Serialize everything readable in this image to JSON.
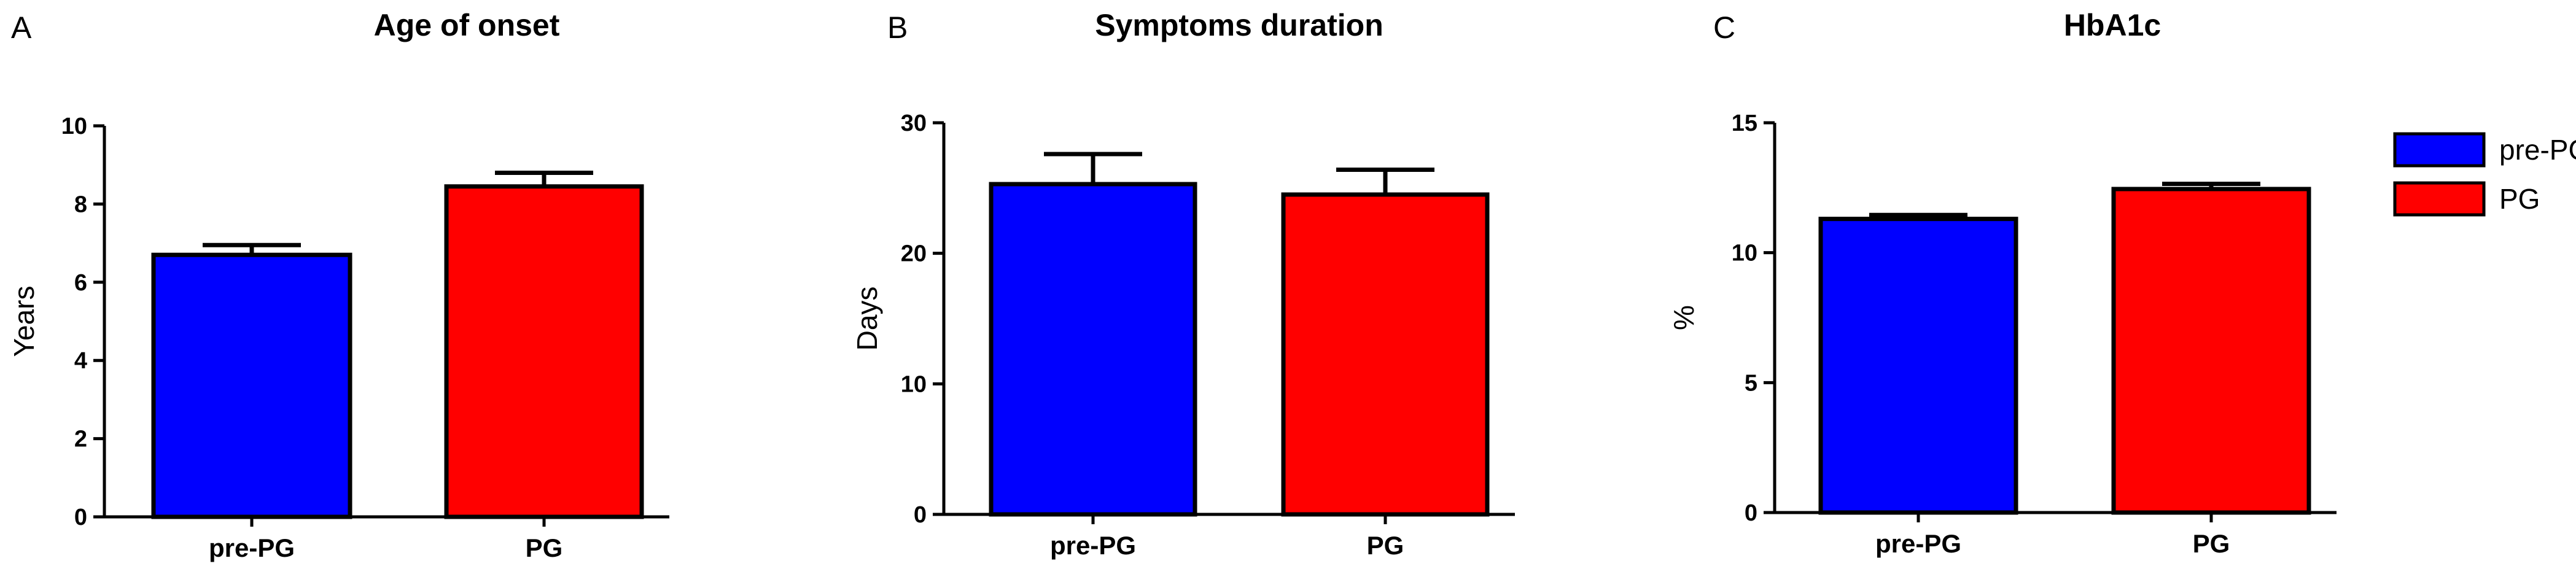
{
  "legend": {
    "placement": "top-right",
    "items": [
      {
        "label": "pre-PG",
        "color": "#0000ff"
      },
      {
        "label": "PG",
        "color": "#ff0000"
      }
    ]
  },
  "chart_data": [
    {
      "type": "bar",
      "panel_letter": "A",
      "title": "Age of onset",
      "xlabel": "",
      "ylabel": "Years",
      "categories": [
        "pre-PG",
        "PG"
      ],
      "colors": [
        "#0000ff",
        "#ff0000"
      ],
      "values": [
        6.7,
        8.45
      ],
      "error": [
        0.25,
        0.35
      ],
      "ylim": [
        0,
        10
      ],
      "yticks": [
        0,
        2,
        4,
        6,
        8,
        10
      ],
      "ytick_labels": [
        "0",
        "2",
        "4",
        "6",
        "8",
        "10"
      ],
      "grid": false
    },
    {
      "type": "bar",
      "panel_letter": "B",
      "title": "Symptoms duration",
      "xlabel": "",
      "ylabel": "Days",
      "categories": [
        "pre-PG",
        "PG"
      ],
      "colors": [
        "#0000ff",
        "#ff0000"
      ],
      "values": [
        25.3,
        24.5
      ],
      "error": [
        2.3,
        1.9
      ],
      "ylim": [
        0,
        30
      ],
      "yticks": [
        0,
        10,
        20,
        30
      ],
      "ytick_labels": [
        "0",
        "10",
        "20",
        "30"
      ],
      "grid": false
    },
    {
      "type": "bar",
      "panel_letter": "C",
      "title": "HbA1c",
      "xlabel": "",
      "ylabel": "%",
      "categories": [
        "pre-PG",
        "PG"
      ],
      "colors": [
        "#0000ff",
        "#ff0000"
      ],
      "values": [
        11.3,
        12.45
      ],
      "error": [
        0.15,
        0.2
      ],
      "ylim": [
        0,
        15
      ],
      "yticks": [
        0,
        5,
        10,
        15
      ],
      "ytick_labels": [
        "0",
        "5",
        "10",
        "15"
      ],
      "grid": false
    }
  ]
}
